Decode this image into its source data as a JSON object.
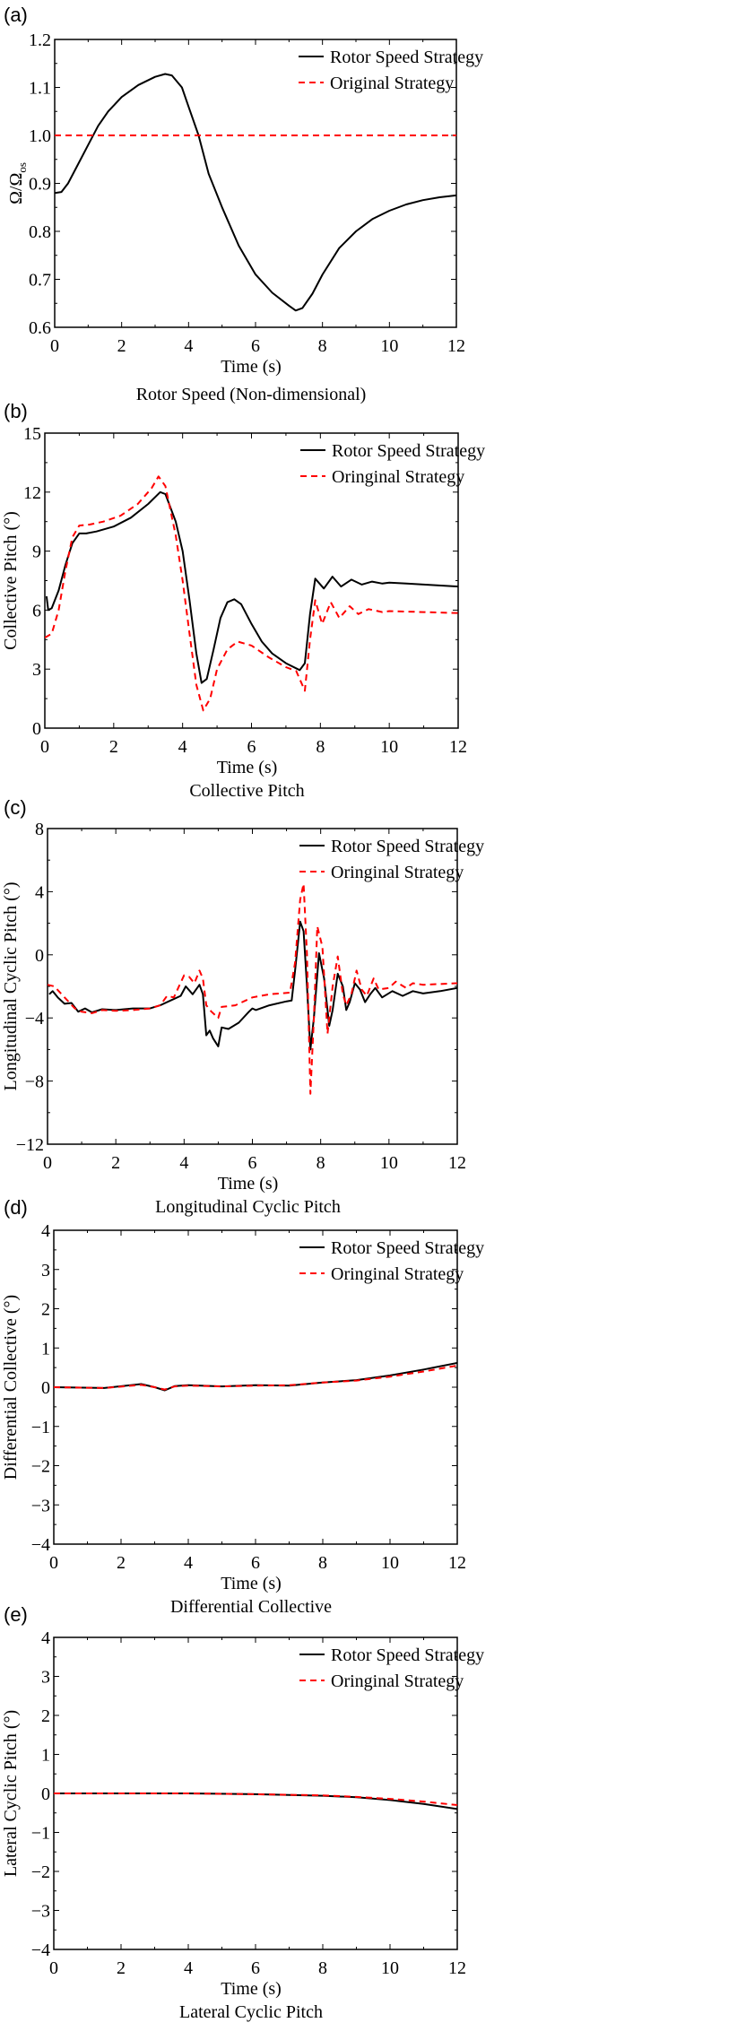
{
  "colors": {
    "rotor_speed": "#000000",
    "original": "#ff0000"
  },
  "chart_data": [
    {
      "type": "line",
      "panel": "(a)",
      "subtitle": "Rotor Speed (Non-dimensional)",
      "xlabel": "Time (s)",
      "ylabel": "Ω/Ω",
      "ylabel_sub": "os",
      "xlim": [
        0,
        12
      ],
      "ylim": [
        0.6,
        1.2
      ],
      "xticks": [
        0,
        2,
        4,
        6,
        8,
        10,
        12
      ],
      "yticks": [
        "0.6",
        "0.7",
        "0.8",
        "0.9",
        "1.0",
        "1.1",
        "1.2"
      ],
      "legend": "top-right",
      "grid": false,
      "series": [
        {
          "name": "Rotor Speed Strategy",
          "style": "solid",
          "x": [
            0,
            0.2,
            0.4,
            0.7,
            1,
            1.3,
            1.6,
            2,
            2.5,
            3,
            3.3,
            3.5,
            3.8,
            4,
            4.3,
            4.6,
            5,
            5.5,
            6,
            6.5,
            7,
            7.2,
            7.4,
            7.7,
            8,
            8.5,
            9,
            9.5,
            10,
            10.5,
            11,
            11.5,
            12
          ],
          "y": [
            0.88,
            0.882,
            0.9,
            0.94,
            0.98,
            1.02,
            1.05,
            1.08,
            1.105,
            1.122,
            1.128,
            1.125,
            1.1,
            1.06,
            1.0,
            0.92,
            0.85,
            0.77,
            0.71,
            0.672,
            0.645,
            0.635,
            0.64,
            0.67,
            0.71,
            0.765,
            0.8,
            0.826,
            0.843,
            0.856,
            0.865,
            0.871,
            0.875
          ]
        },
        {
          "name": "Original Strategy",
          "style": "dashed",
          "x": [
            0,
            12
          ],
          "y": [
            1.0,
            1.0
          ]
        }
      ]
    },
    {
      "type": "line",
      "panel": "(b)",
      "subtitle": "Collective Pitch",
      "xlabel": "Time (s)",
      "ylabel": "Collective Pitch (°)",
      "xlim": [
        0,
        12
      ],
      "ylim": [
        0,
        15
      ],
      "xticks": [
        0,
        2,
        4,
        6,
        8,
        10,
        12
      ],
      "yticks": [
        "0",
        "3",
        "6",
        "9",
        "12",
        "15"
      ],
      "legend": "top-right",
      "grid": false,
      "series": [
        {
          "name": "Rotor Speed Strategy",
          "style": "solid",
          "x": [
            0.05,
            0.1,
            0.2,
            0.4,
            0.6,
            0.8,
            1,
            1.2,
            1.5,
            2,
            2.5,
            3,
            3.35,
            3.5,
            3.8,
            4,
            4.2,
            4.4,
            4.55,
            4.7,
            4.9,
            5.1,
            5.3,
            5.5,
            5.7,
            6,
            6.3,
            6.6,
            7,
            7.4,
            7.55,
            7.7,
            7.85,
            8.1,
            8.35,
            8.6,
            8.9,
            9.2,
            9.5,
            9.8,
            10,
            10.5,
            11,
            12
          ],
          "y": [
            6.7,
            6.0,
            6.1,
            7.0,
            8.3,
            9.4,
            9.9,
            9.9,
            10,
            10.25,
            10.7,
            11.4,
            12.0,
            11.9,
            10.5,
            9,
            6.5,
            3.8,
            2.3,
            2.5,
            4.0,
            5.6,
            6.4,
            6.55,
            6.3,
            5.3,
            4.4,
            3.8,
            3.3,
            2.95,
            3.3,
            5.8,
            7.6,
            7.1,
            7.7,
            7.2,
            7.55,
            7.3,
            7.45,
            7.35,
            7.4,
            7.35,
            7.3,
            7.2
          ]
        },
        {
          "name": "Oringinal Strategy",
          "style": "dashed",
          "x": [
            0,
            0.2,
            0.4,
            0.6,
            0.8,
            1,
            1.3,
            1.7,
            2.2,
            2.7,
            3.1,
            3.3,
            3.5,
            3.8,
            4,
            4.2,
            4.4,
            4.6,
            4.8,
            5,
            5.3,
            5.6,
            6,
            6.5,
            7,
            7.3,
            7.55,
            7.7,
            7.85,
            8.05,
            8.3,
            8.55,
            8.85,
            9.1,
            9.4,
            9.8,
            10,
            11,
            12
          ],
          "y": [
            4.6,
            4.8,
            6.0,
            8,
            9.7,
            10.3,
            10.35,
            10.5,
            10.8,
            11.4,
            12.2,
            12.8,
            12.3,
            9.8,
            7.5,
            4.8,
            2.2,
            0.9,
            1.5,
            3.0,
            4.0,
            4.4,
            4.2,
            3.6,
            3.1,
            2.9,
            1.9,
            4.5,
            6.5,
            5.3,
            6.4,
            5.6,
            6.2,
            5.8,
            6.05,
            5.9,
            5.95,
            5.9,
            5.85
          ]
        }
      ]
    },
    {
      "type": "line",
      "panel": "(c)",
      "subtitle": "Longitudinal Cyclic Pitch",
      "xlabel": "Time (s)",
      "ylabel": "Longitudinal Cyclic Pitch (°)",
      "xlim": [
        0,
        12
      ],
      "ylim": [
        -12,
        8
      ],
      "xticks": [
        0,
        2,
        4,
        6,
        8,
        10,
        12
      ],
      "yticks": [
        "−12",
        "−8",
        "−4",
        "0",
        "4",
        "8"
      ],
      "legend": "top-right",
      "grid": false,
      "series": [
        {
          "name": "Rotor Speed Strategy",
          "style": "solid",
          "x": [
            0.05,
            0.15,
            0.3,
            0.5,
            0.7,
            0.9,
            1.1,
            1.3,
            1.6,
            2,
            2.5,
            3,
            3.3,
            3.6,
            3.9,
            4.05,
            4.25,
            4.45,
            4.55,
            4.65,
            4.75,
            4.85,
            5.0,
            5.1,
            5.3,
            5.6,
            5.9,
            6.0,
            6.1,
            6.5,
            7,
            7.15,
            7.25,
            7.4,
            7.5,
            7.6,
            7.7,
            7.8,
            7.95,
            8.1,
            8.25,
            8.35,
            8.5,
            8.65,
            8.75,
            8.85,
            9.0,
            9.15,
            9.3,
            9.45,
            9.6,
            9.8,
            10.1,
            10.4,
            10.7,
            11,
            11.5,
            12
          ],
          "y": [
            -2.5,
            -2.3,
            -2.7,
            -3.1,
            -3.05,
            -3.6,
            -3.4,
            -3.65,
            -3.45,
            -3.5,
            -3.4,
            -3.4,
            -3.2,
            -2.9,
            -2.6,
            -2.0,
            -2.5,
            -1.9,
            -2.5,
            -5.1,
            -4.8,
            -5.3,
            -5.8,
            -4.6,
            -4.7,
            -4.3,
            -3.6,
            -3.4,
            -3.5,
            -3.2,
            -2.95,
            -2.9,
            -1,
            2.1,
            1.5,
            -2,
            -6,
            -4,
            0.1,
            -1.5,
            -4.5,
            -3.5,
            -1.2,
            -2,
            -3.5,
            -3.0,
            -1.8,
            -2.2,
            -3.0,
            -2.5,
            -2.1,
            -2.7,
            -2.3,
            -2.6,
            -2.3,
            -2.45,
            -2.3,
            -2.1
          ]
        },
        {
          "name": "Oringinal Strategy",
          "style": "dashed",
          "x": [
            0,
            0.2,
            0.5,
            0.8,
            1,
            1.3,
            1.6,
            2,
            2.5,
            3,
            3.3,
            3.5,
            3.7,
            4.0,
            4.15,
            4.3,
            4.45,
            4.55,
            4.65,
            4.8,
            5.0,
            5.1,
            5.5,
            6,
            6.5,
            7.1,
            7.25,
            7.4,
            7.5,
            7.6,
            7.7,
            7.8,
            7.9,
            8.05,
            8.2,
            8.35,
            8.5,
            8.65,
            8.75,
            8.9,
            9.05,
            9.2,
            9.35,
            9.55,
            9.7,
            10.0,
            10.2,
            10.5,
            10.7,
            11,
            12
          ],
          "y": [
            -1.9,
            -2.0,
            -2.7,
            -3.4,
            -3.6,
            -3.7,
            -3.5,
            -3.55,
            -3.5,
            -3.4,
            -3.2,
            -2.6,
            -2.7,
            -1.3,
            -1.4,
            -1.8,
            -1.0,
            -1.5,
            -3.2,
            -3.6,
            -4.0,
            -3.3,
            -3.2,
            -2.7,
            -2.5,
            -2.4,
            -0.5,
            3.5,
            4.5,
            0,
            -8.8,
            -4,
            1.8,
            0.5,
            -5.0,
            -2,
            -0.1,
            -2.5,
            -3.2,
            -2.5,
            -1.0,
            -2.2,
            -2.6,
            -1.5,
            -2.2,
            -2.1,
            -1.7,
            -2.1,
            -1.8,
            -1.9,
            -1.8
          ]
        }
      ]
    },
    {
      "type": "line",
      "panel": "(d)",
      "subtitle": "Differential Collective",
      "xlabel": "Time (s)",
      "ylabel": "Differential Collective (°)",
      "xlim": [
        0,
        12
      ],
      "ylim": [
        -4,
        4
      ],
      "xticks": [
        0,
        2,
        4,
        6,
        8,
        10,
        12
      ],
      "yticks": [
        "−4",
        "−3",
        "−2",
        "−1",
        "0",
        "1",
        "2",
        "3",
        "4"
      ],
      "legend": "top-right",
      "grid": false,
      "series": [
        {
          "name": "Rotor Speed Strategy",
          "style": "solid",
          "x": [
            0,
            1.5,
            2.6,
            3,
            3.3,
            3.6,
            4,
            5,
            6,
            7,
            8,
            9,
            10,
            11,
            12
          ],
          "y": [
            0,
            -0.02,
            0.08,
            0.0,
            -0.08,
            0.03,
            0.05,
            0.02,
            0.05,
            0.04,
            0.12,
            0.18,
            0.3,
            0.45,
            0.62
          ]
        },
        {
          "name": "Oringinal Strategy",
          "style": "dashed",
          "x": [
            0,
            1.5,
            2.6,
            3,
            3.3,
            3.6,
            4,
            5,
            6,
            7,
            8,
            9,
            10,
            11,
            12
          ],
          "y": [
            0,
            -0.02,
            0.06,
            0.0,
            -0.06,
            0.02,
            0.04,
            0.02,
            0.04,
            0.05,
            0.12,
            0.17,
            0.27,
            0.4,
            0.55
          ]
        }
      ]
    },
    {
      "type": "line",
      "panel": "(e)",
      "subtitle": "Lateral Cyclic Pitch",
      "xlabel": "Time (s)",
      "ylabel": "Lateral Cyclic Pitch (°)",
      "xlim": [
        0,
        12
      ],
      "ylim": [
        -4,
        4
      ],
      "xticks": [
        0,
        2,
        4,
        6,
        8,
        10,
        12
      ],
      "yticks": [
        "−4",
        "−3",
        "−2",
        "−1",
        "0",
        "1",
        "2",
        "3",
        "4"
      ],
      "legend": "top-right",
      "grid": false,
      "series": [
        {
          "name": "Rotor Speed Strategy",
          "style": "solid",
          "x": [
            0,
            4,
            6,
            8,
            9,
            10,
            11,
            12
          ],
          "y": [
            0,
            0,
            -0.02,
            -0.06,
            -0.1,
            -0.17,
            -0.27,
            -0.4
          ]
        },
        {
          "name": "Oringinal Strategy",
          "style": "dashed",
          "x": [
            0,
            4,
            6,
            8,
            9,
            10,
            11,
            12
          ],
          "y": [
            0,
            0,
            -0.02,
            -0.05,
            -0.09,
            -0.14,
            -0.21,
            -0.3
          ]
        }
      ]
    }
  ]
}
